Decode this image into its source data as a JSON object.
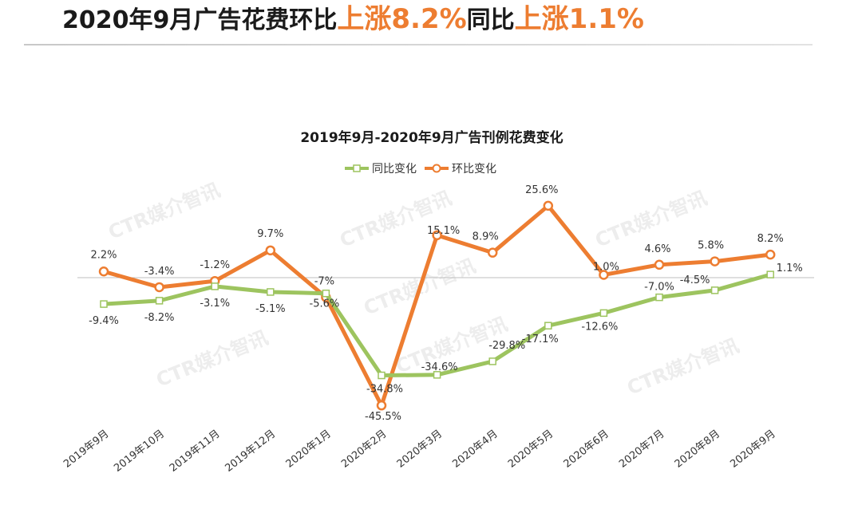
{
  "headline": {
    "part1": "2020年9月广告花费环比",
    "part2": "上涨8.2%",
    "part3": "同比",
    "part4": "上涨1.1%"
  },
  "watermark": "CTR媒介智讯",
  "colors": {
    "yoy": "#9dc45f",
    "mom": "#ed7d31",
    "accent": "#ed7d31"
  },
  "chart_data": {
    "type": "line",
    "title": "2019年9月-2020年9月广告刊例花费变化",
    "categories": [
      "2019年9月",
      "2019年10月",
      "2019年11月",
      "2019年12月",
      "2020年1月",
      "2020年2月",
      "2020年3月",
      "2020年4月",
      "2020年5月",
      "2020年6月",
      "2020年7月",
      "2020年8月",
      "2020年9月"
    ],
    "series": [
      {
        "name": "同比变化",
        "values": [
          -9.4,
          -8.2,
          -3.1,
          -5.1,
          -5.6,
          -34.8,
          -34.6,
          -29.8,
          -17.1,
          -12.6,
          -7.0,
          -4.5,
          1.1
        ],
        "labels": [
          "-9.4%",
          "-8.2%",
          "-3.1%",
          "-5.1%",
          "-5.6%",
          "-34.8%",
          "-34.6%",
          "-29.8%",
          "-17.1%",
          "-12.6%",
          "-7.0%",
          "-4.5%",
          "1.1%"
        ]
      },
      {
        "name": "环比变化",
        "values": [
          2.2,
          -3.4,
          -1.2,
          9.7,
          -7,
          -45.5,
          15.1,
          8.9,
          25.6,
          1.0,
          4.6,
          5.8,
          8.2
        ],
        "labels": [
          "2.2%",
          "-3.4%",
          "-1.2%",
          "9.7%",
          "-7%",
          "-45.5%",
          "15.1%",
          "8.9%",
          "25.6%",
          "1.0%",
          "4.6%",
          "5.8%",
          "8.2%"
        ]
      }
    ],
    "legend_position": "top-center",
    "grid": false
  }
}
